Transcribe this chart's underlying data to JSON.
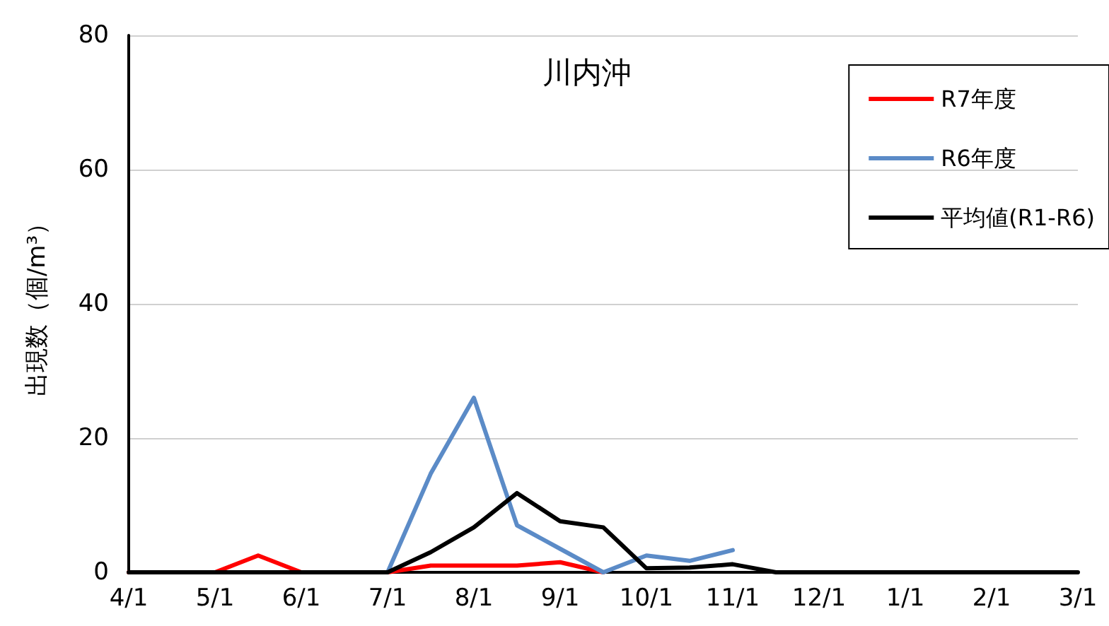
{
  "chart_data": {
    "type": "line",
    "title": "川内沖",
    "ylabel": "出現数（個/m³）",
    "categories": [
      "4/1",
      null,
      "5/1",
      null,
      "6/1",
      null,
      "7/1",
      null,
      "8/1",
      null,
      "9/1",
      null,
      "10/1",
      null,
      "11/1",
      null,
      "12/1",
      null,
      "1/1",
      null,
      "2/1",
      null,
      "3/1"
    ],
    "series": [
      {
        "name": "R7年度",
        "color": "#ff0000",
        "values": [
          0,
          0,
          0,
          2.5,
          0,
          0,
          0,
          1,
          1,
          1,
          1.5,
          0,
          null,
          null,
          null,
          null,
          null,
          null,
          null,
          null,
          null,
          null,
          null
        ]
      },
      {
        "name": "R6年度",
        "color": "#5b8bc7",
        "values": [
          null,
          null,
          null,
          null,
          null,
          0,
          0,
          14.7,
          26,
          7,
          3.5,
          0,
          2.5,
          1.7,
          3.3,
          null,
          null,
          null,
          null,
          null,
          null,
          null,
          null
        ]
      },
      {
        "name": "平均値(R1-R6)",
        "color": "#000000",
        "values": [
          0,
          0,
          0,
          0,
          0,
          0,
          0,
          3,
          6.7,
          11.8,
          7.6,
          6.7,
          0.6,
          0.7,
          1.2,
          0,
          0,
          0,
          0,
          0,
          0,
          0,
          0
        ]
      }
    ],
    "ylim": [
      0,
      80
    ],
    "yticks": [
      0,
      20,
      40,
      60,
      80
    ],
    "grid": "y",
    "legend": "top right",
    "marker": "none",
    "line_style": "solid"
  }
}
